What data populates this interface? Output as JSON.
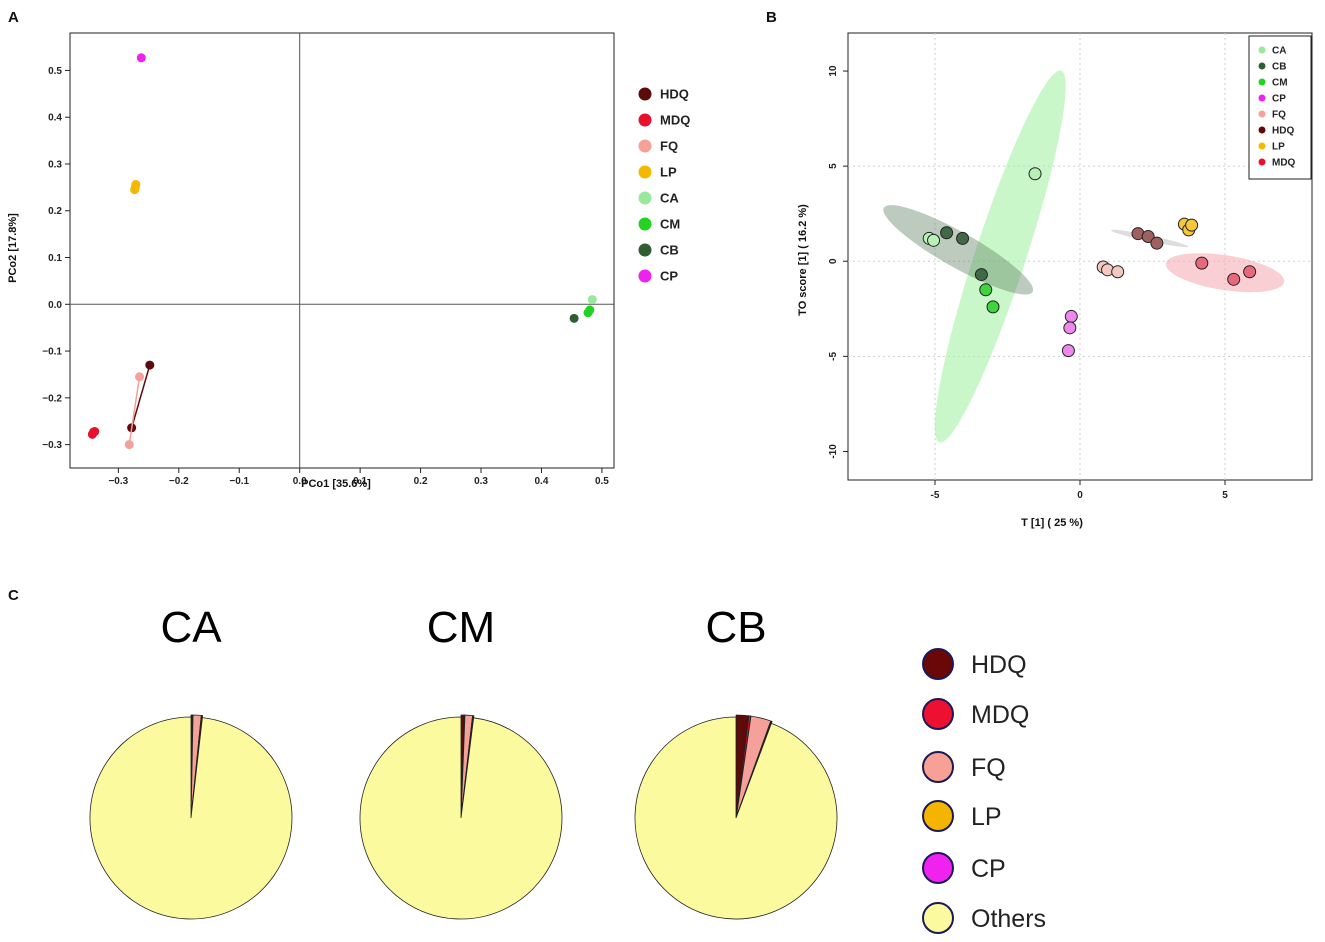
{
  "panels": {
    "A": {
      "letter": "A",
      "xlabel": "PCo1 [35.6%]",
      "ylabel": "PCo2 [17.8%]",
      "xticks": [
        -0.3,
        -0.2,
        -0.1,
        0.0,
        0.1,
        0.2,
        0.3,
        0.4,
        0.5
      ],
      "xtick_labels": [
        "−0.3",
        "−0.2",
        "−0.1",
        "0.0",
        "0.1",
        "0.2",
        "0.3",
        "0.4",
        "0.5"
      ],
      "yticks": [
        -0.3,
        -0.2,
        -0.1,
        0.0,
        0.1,
        0.2,
        0.3,
        0.4,
        0.5
      ],
      "ytick_labels": [
        "−0.3",
        "−0.2",
        "−0.1",
        "0.0",
        "0.1",
        "0.2",
        "0.3",
        "0.4",
        "0.5"
      ],
      "xlim": [
        -0.38,
        0.52
      ],
      "ylim": [
        -0.35,
        0.58
      ]
    },
    "B": {
      "letter": "B",
      "xlabel": "T [1] ( 25 %)",
      "ylabel": "TO score [1] ( 16.2 %)",
      "xticks": [
        -5,
        0,
        5
      ],
      "xtick_labels": [
        "-5",
        "0",
        "5"
      ],
      "yticks": [
        -10,
        -5,
        0,
        5,
        10
      ],
      "ytick_labels": [
        "-10",
        "-5",
        "0",
        "5",
        "10"
      ],
      "xlim": [
        -8,
        8
      ],
      "ylim": [
        -11.5,
        12
      ]
    },
    "C": {
      "letter": "C"
    }
  },
  "colors": {
    "HDQ": "#5c0a0a",
    "MDQ": "#e8102a",
    "FQ": "#f5a098",
    "LP": "#f5b800",
    "CA": "#9ae89a",
    "CM": "#22d322",
    "CB": "#2f5e33",
    "CP": "#ee22ee",
    "Others": "#fbfa9f"
  },
  "chart_data": [
    {
      "type": "scatter",
      "title": "A",
      "xlabel": "PCo1 [35.6%]",
      "ylabel": "PCo2 [17.8%]",
      "xlim": [
        -0.38,
        0.52
      ],
      "ylim": [
        -0.35,
        0.58
      ],
      "legend": [
        "HDQ",
        "MDQ",
        "FQ",
        "LP",
        "CA",
        "CM",
        "CB",
        "CP"
      ],
      "series": [
        {
          "name": "HDQ",
          "points": [
            [
              -0.248,
              -0.13
            ],
            [
              -0.278,
              -0.264
            ]
          ],
          "connected": true
        },
        {
          "name": "MDQ",
          "points": [
            [
              -0.343,
              -0.278
            ],
            [
              -0.341,
              -0.273
            ],
            [
              -0.339,
              -0.272
            ]
          ]
        },
        {
          "name": "FQ",
          "points": [
            [
              -0.265,
              -0.155
            ],
            [
              -0.282,
              -0.3
            ]
          ],
          "connected": true
        },
        {
          "name": "LP",
          "points": [
            [
              -0.273,
              0.245
            ],
            [
              -0.272,
              0.25
            ],
            [
              -0.271,
              0.256
            ]
          ]
        },
        {
          "name": "CA",
          "points": [
            [
              0.484,
              0.01
            ]
          ]
        },
        {
          "name": "CM",
          "points": [
            [
              0.477,
              -0.018
            ],
            [
              0.48,
              -0.012
            ]
          ]
        },
        {
          "name": "CB",
          "points": [
            [
              0.454,
              -0.03
            ]
          ]
        },
        {
          "name": "CP",
          "points": [
            [
              -0.262,
              0.527
            ]
          ]
        }
      ]
    },
    {
      "type": "scatter",
      "title": "B",
      "xlabel": "T [1] ( 25 %)",
      "ylabel": "TO score [1] ( 16.2 %)",
      "xlim": [
        -8,
        8
      ],
      "ylim": [
        -11.5,
        12
      ],
      "grid": true,
      "legend": [
        "CA",
        "CB",
        "CM",
        "CP",
        "FQ",
        "HDQ",
        "LP",
        "MDQ"
      ],
      "series": [
        {
          "name": "CA",
          "points": [
            [
              -5.2,
              1.2
            ],
            [
              -5.05,
              1.1
            ],
            [
              -1.55,
              4.6
            ]
          ]
        },
        {
          "name": "CB",
          "points": [
            [
              -4.6,
              1.5
            ],
            [
              -4.05,
              1.2
            ],
            [
              -3.4,
              -0.7
            ]
          ]
        },
        {
          "name": "CM",
          "points": [
            [
              -3.25,
              -1.5
            ],
            [
              -3.0,
              -2.4
            ]
          ]
        },
        {
          "name": "CP",
          "points": [
            [
              -0.3,
              -2.9
            ],
            [
              -0.35,
              -3.5
            ],
            [
              -0.4,
              -4.7
            ]
          ]
        },
        {
          "name": "FQ",
          "points": [
            [
              0.8,
              -0.3
            ],
            [
              0.95,
              -0.45
            ],
            [
              1.3,
              -0.55
            ]
          ]
        },
        {
          "name": "HDQ",
          "points": [
            [
              2.0,
              1.45
            ],
            [
              2.35,
              1.3
            ],
            [
              2.65,
              0.95
            ]
          ]
        },
        {
          "name": "LP",
          "points": [
            [
              3.6,
              1.95
            ],
            [
              3.75,
              1.65
            ],
            [
              3.85,
              1.9
            ]
          ]
        },
        {
          "name": "MDQ",
          "points": [
            [
              4.2,
              -0.1
            ],
            [
              5.3,
              -0.95
            ],
            [
              5.85,
              -0.55
            ]
          ]
        }
      ],
      "ellipses": [
        {
          "name": "CA",
          "cx": -2.75,
          "cy": 0.25,
          "rx": 10.0,
          "ry": 0.9,
          "angle_deg": 78
        },
        {
          "name": "CB",
          "cx": -4.2,
          "cy": 0.6,
          "rx": 3.4,
          "ry": 0.8,
          "angle_deg": -42
        },
        {
          "name": "HDQ",
          "cx": 2.4,
          "cy": 1.2,
          "rx": 1.4,
          "ry": 0.15,
          "angle_deg": -18
        },
        {
          "name": "MDQ",
          "cx": 5.0,
          "cy": -0.6,
          "rx": 2.1,
          "ry": 0.9,
          "angle_deg": -15
        }
      ]
    },
    {
      "type": "pie",
      "title": "CA",
      "labels": [
        "HDQ",
        "MDQ",
        "FQ",
        "LP",
        "CP",
        "Others"
      ],
      "values": [
        0.2,
        0.1,
        1.3,
        0.1,
        0.1,
        98.2
      ]
    },
    {
      "type": "pie",
      "title": "CM",
      "labels": [
        "HDQ",
        "MDQ",
        "FQ",
        "LP",
        "CP",
        "Others"
      ],
      "values": [
        0.5,
        0.1,
        1.2,
        0.1,
        0.1,
        98.0
      ]
    },
    {
      "type": "pie",
      "title": "CB",
      "labels": [
        "HDQ",
        "MDQ",
        "FQ",
        "LP",
        "CP",
        "Others"
      ],
      "values": [
        2.0,
        0.3,
        3.2,
        0.1,
        0.1,
        94.3
      ]
    }
  ],
  "legend_c": [
    "HDQ",
    "MDQ",
    "FQ",
    "LP",
    "CP",
    "Others"
  ]
}
